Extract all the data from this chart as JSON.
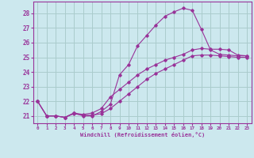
{
  "xlabel": "Windchill (Refroidissement éolien,°C)",
  "bg_color": "#cce8ee",
  "grid_color": "#aacccc",
  "line_color": "#993399",
  "xlim": [
    -0.5,
    23.5
  ],
  "ylim": [
    20.5,
    28.8
  ],
  "xticks": [
    0,
    1,
    2,
    3,
    4,
    5,
    6,
    7,
    8,
    9,
    10,
    11,
    12,
    13,
    14,
    15,
    16,
    17,
    18,
    19,
    20,
    21,
    22,
    23
  ],
  "yticks": [
    21,
    22,
    23,
    24,
    25,
    26,
    27,
    28
  ],
  "curve1_x": [
    0,
    1,
    2,
    3,
    4,
    5,
    6,
    7,
    8,
    9,
    10,
    11,
    12,
    13,
    14,
    15,
    16,
    17,
    18,
    19,
    20,
    21,
    22,
    23
  ],
  "curve1_y": [
    22.0,
    21.0,
    21.0,
    20.9,
    21.2,
    21.0,
    21.0,
    21.3,
    21.8,
    23.8,
    24.5,
    25.8,
    26.5,
    27.2,
    27.8,
    28.1,
    28.35,
    28.2,
    26.9,
    25.5,
    25.2,
    25.15,
    25.1,
    25.1
  ],
  "curve2_x": [
    0,
    1,
    2,
    3,
    4,
    5,
    6,
    7,
    8,
    9,
    10,
    11,
    12,
    13,
    14,
    15,
    16,
    17,
    18,
    19,
    20,
    21,
    22,
    23
  ],
  "curve2_y": [
    22.0,
    21.0,
    21.0,
    20.9,
    21.2,
    21.1,
    21.2,
    21.5,
    22.3,
    22.8,
    23.3,
    23.8,
    24.2,
    24.5,
    24.8,
    25.0,
    25.2,
    25.5,
    25.6,
    25.55,
    25.55,
    25.5,
    25.15,
    25.1
  ],
  "curve3_x": [
    0,
    1,
    2,
    3,
    4,
    5,
    6,
    7,
    8,
    9,
    10,
    11,
    12,
    13,
    14,
    15,
    16,
    17,
    18,
    19,
    20,
    21,
    22,
    23
  ],
  "curve3_y": [
    22.0,
    21.0,
    21.0,
    20.9,
    21.15,
    21.05,
    21.05,
    21.15,
    21.5,
    22.0,
    22.5,
    23.0,
    23.5,
    23.9,
    24.2,
    24.5,
    24.8,
    25.1,
    25.15,
    25.15,
    25.1,
    25.05,
    25.0,
    25.0
  ]
}
